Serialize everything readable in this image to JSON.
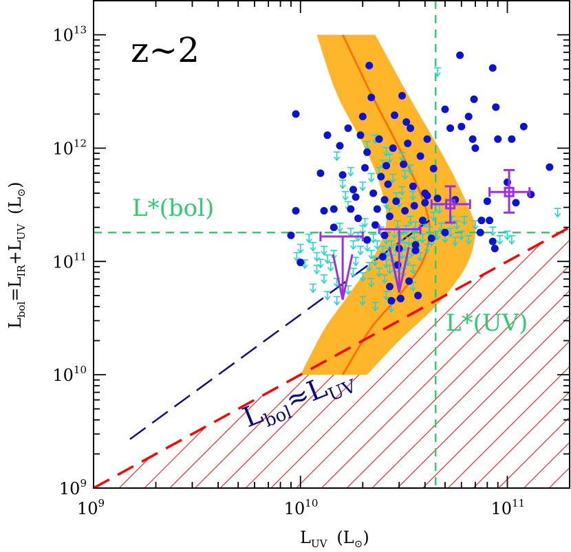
{
  "chart_data": {
    "type": "scatter",
    "redshift_label": "z~2",
    "xscale": "log",
    "yscale": "log",
    "xlim": [
      1000000000.0,
      200000000000.0
    ],
    "ylim": [
      1000000000.0,
      20000000000000.0
    ],
    "xlabel": {
      "main": "L",
      "sub": "UV",
      "unit": "(L",
      "unit_sub": "⊙",
      "unit_close": ")"
    },
    "ylabel": {
      "parts": [
        "L",
        "bol",
        "=L",
        "IR",
        "+L",
        "UV",
        "(L",
        "⊙",
        ")"
      ]
    },
    "x_ticks": [
      {
        "base": "10",
        "exp": "9",
        "value": 1000000000.0
      },
      {
        "base": "10",
        "exp": "10",
        "value": 10000000000.0
      },
      {
        "base": "10",
        "exp": "11",
        "value": 100000000000.0
      }
    ],
    "y_ticks": [
      {
        "base": "10",
        "exp": "9",
        "value": 1000000000.0
      },
      {
        "base": "10",
        "exp": "10",
        "value": 10000000000.0
      },
      {
        "base": "10",
        "exp": "11",
        "value": 100000000000.0
      },
      {
        "base": "10",
        "exp": "12",
        "value": 1000000000000.0
      },
      {
        "base": "10",
        "exp": "13",
        "value": 10000000000000.0
      }
    ],
    "reference_lines": {
      "lstar_bol": {
        "label": "L*(bol)",
        "y": 180000000000.0,
        "color": "#2ecc71"
      },
      "lstar_uv": {
        "label": "L*(UV)",
        "x": 45000000000.0,
        "color": "#2ecc71"
      }
    },
    "equality_label": {
      "main": "L",
      "sub": "bol",
      "rel": "≈L",
      "sub2": "UV",
      "color": "#0a0a7a"
    },
    "colors": {
      "band": "#ffb62a",
      "band_center": "#ff6a00",
      "detections": "#0a14d0",
      "limits": "#22d3d3",
      "stacks": "#9b30e0",
      "hatch": "#ff0000",
      "dashed_fit": "#10107a"
    },
    "band": {
      "center": [
        [
          16000000000.0,
          10000000000000.0
        ],
        [
          22000000000.0,
          3000000000000.0
        ],
        [
          30000000000.0,
          1000000000000.0
        ],
        [
          38000000000.0,
          400000000000.0
        ],
        [
          42000000000.0,
          200000000000.0
        ],
        [
          39000000000.0,
          100000000000.0
        ],
        [
          30000000000.0,
          50000000000.0
        ],
        [
          22000000000.0,
          26000000000.0
        ],
        [
          16000000000.0,
          10000000000.0
        ]
      ],
      "outer": [
        [
          23000000000.0,
          10000000000000.0
        ],
        [
          33000000000.0,
          3000000000000.0
        ],
        [
          50000000000.0,
          800000000000.0
        ],
        [
          65000000000.0,
          300000000000.0
        ],
        [
          70000000000.0,
          180000000000.0
        ],
        [
          63000000000.0,
          90000000000.0
        ],
        [
          46000000000.0,
          42000000000.0
        ],
        [
          30000000000.0,
          20000000000.0
        ],
        [
          21000000000.0,
          10000000000.0
        ]
      ],
      "inner": [
        [
          12000000000.0,
          10000000000000.0
        ],
        [
          15000000000.0,
          3000000000000.0
        ],
        [
          20000000000.0,
          1100000000000.0
        ],
        [
          24000000000.0,
          500000000000.0
        ],
        [
          26000000000.0,
          220000000000.0
        ],
        [
          22000000000.0,
          100000000000.0
        ],
        [
          17000000000.0,
          50000000000.0
        ],
        [
          13000000000.0,
          25000000000.0
        ],
        [
          10000000000.0,
          10000000000.0
        ]
      ]
    },
    "dashed_fit": {
      "from": [
        1500000000.0,
        2700000000.0
      ],
      "to": [
        42000000000.0,
        230000000000.0
      ]
    },
    "equality_line": {
      "from": [
        1000000000.0,
        1000000000.0
      ],
      "to": [
        200000000000.0,
        200000000000.0
      ]
    },
    "detections": [
      [
        9500000000.0,
        2000000000000.0
      ],
      [
        9500000000.0,
        280000000000.0
      ],
      [
        9000000000.0,
        170000000000.0
      ],
      [
        10000000000.0,
        98000000000.0
      ],
      [
        12500000000.0,
        600000000000.0
      ],
      [
        13500000000.0,
        1300000000000.0
      ],
      [
        15500000000.0,
        1050000000000.0
      ],
      [
        17000000000.0,
        1500000000000.0
      ],
      [
        13000000000.0,
        280000000000.0
      ],
      [
        14500000000.0,
        290000000000.0
      ],
      [
        14500000000.0,
        200000000000.0
      ],
      [
        16000000000.0,
        580000000000.0
      ],
      [
        18000000000.0,
        430000000000.0
      ],
      [
        17500000000.0,
        290000000000.0
      ],
      [
        18500000000.0,
        370000000000.0
      ],
      [
        19000000000.0,
        240000000000.0
      ],
      [
        19500000000.0,
        1300000000000.0
      ],
      [
        20000000000.0,
        1900000000000.0
      ],
      [
        20500000000.0,
        670000000000.0
      ],
      [
        21000000000.0,
        920000000000.0
      ],
      [
        21000000000.0,
        155000000000.0
      ],
      [
        21500000000.0,
        5350000000000.0
      ],
      [
        22000000000.0,
        2800000000000.0
      ],
      [
        22500000000.0,
        400000000000.0
      ],
      [
        23000000000.0,
        210000000000.0
      ],
      [
        23500000000.0,
        290000000000.0
      ],
      [
        24000000000.0,
        1200000000000.0
      ],
      [
        24500000000.0,
        560000000000.0
      ],
      [
        25000000000.0,
        110000000000.0
      ],
      [
        25500000000.0,
        350000000000.0
      ],
      [
        25500000000.0,
        170000000000.0
      ],
      [
        26000000000.0,
        700000000000.0
      ],
      [
        26500000000.0,
        480000000000.0
      ],
      [
        27000000000.0,
        250000000000.0
      ],
      [
        27000000000.0,
        60000000000.0
      ],
      [
        27500000000.0,
        45000000000.0
      ],
      [
        28000000000.0,
        1000000000000.0
      ],
      [
        28500000000.0,
        1950000000000.0
      ],
      [
        29000000000.0,
        340000000000.0
      ],
      [
        29500000000.0,
        93000000000.0
      ],
      [
        30000000000.0,
        130000000000.0
      ],
      [
        30500000000.0,
        47000000000.0
      ],
      [
        31000000000.0,
        2900000000000.0
      ],
      [
        31500000000.0,
        720000000000.0
      ],
      [
        32000000000.0,
        280000000000.0
      ],
      [
        32500000000.0,
        1700000000000.0
      ],
      [
        33000000000.0,
        1100000000000.0
      ],
      [
        33500000000.0,
        67000000000.0
      ],
      [
        34000000000.0,
        1500000000000.0
      ],
      [
        35000000000.0,
        460000000000.0
      ],
      [
        35500000000.0,
        310000000000.0
      ],
      [
        36000000000.0,
        140000000000.0
      ],
      [
        37000000000.0,
        50000000000.0
      ],
      [
        38000000000.0,
        850000000000.0
      ],
      [
        39000000000.0,
        230000000000.0
      ],
      [
        40000000000.0,
        400000000000.0
      ],
      [
        41000000000.0,
        1200000000000.0
      ],
      [
        43000000000.0,
        160000000000.0
      ],
      [
        44000000000.0,
        660000000000.0
      ],
      [
        46000000000.0,
        360000000000.0
      ],
      [
        50000000000.0,
        2200000000000.0
      ],
      [
        50000000000.0,
        180000000000.0
      ],
      [
        53000000000.0,
        1500000000000.0
      ],
      [
        56000000000.0,
        350000000000.0
      ],
      [
        59000000000.0,
        6600000000000.0
      ],
      [
        60000000000.0,
        1550000000000.0
      ],
      [
        65000000000.0,
        1900000000000.0
      ],
      [
        68000000000.0,
        1200000000000.0
      ],
      [
        69000000000.0,
        2700000000000.0
      ],
      [
        70000000000.0,
        1000000000000.0
      ],
      [
        74000000000.0,
        180000000000.0
      ],
      [
        75000000000.0,
        230000000000.0
      ],
      [
        80000000000.0,
        340000000000.0
      ],
      [
        82000000000.0,
        230000000000.0
      ],
      [
        85000000000.0,
        150000000000.0
      ],
      [
        87000000000.0,
        130000000000.0
      ],
      [
        85000000000.0,
        5100000000000.0
      ],
      [
        88000000000.0,
        2300000000000.0
      ],
      [
        90000000000.0,
        1200000000000.0
      ],
      [
        100000000000.0,
        500000000000.0
      ],
      [
        105000000000.0,
        1200000000000.0
      ],
      [
        110000000000.0,
        330000000000.0
      ],
      [
        120000000000.0,
        1550000000000.0
      ],
      [
        130000000000.0,
        390000000000.0
      ],
      [
        160000000000.0,
        680000000000.0
      ],
      [
        40000000000.0,
        330000000000.0
      ],
      [
        41000000000.0,
        380000000000.0
      ],
      [
        36000000000.0,
        125000000000.0
      ]
    ],
    "upper_limits": [
      [
        15000000000.0,
        850000000000.0
      ],
      [
        15500000000.0,
        200000000000.0
      ],
      [
        11000000000.0,
        160000000000.0
      ],
      [
        11500000000.0,
        135000000000.0
      ],
      [
        12000000000.0,
        110000000000.0
      ],
      [
        12500000000.0,
        96000000000.0
      ],
      [
        13000000000.0,
        125000000000.0
      ],
      [
        13500000000.0,
        105000000000.0
      ],
      [
        14000000000.0,
        90000000000.0
      ],
      [
        14500000000.0,
        115000000000.0
      ],
      [
        12000000000.0,
        85000000000.0
      ],
      [
        9600000000.0,
        110000000000.0
      ],
      [
        10000000000.0,
        130000000000.0
      ],
      [
        10500000000.0,
        95000000000.0
      ],
      [
        16000000000.0,
        480000000000.0
      ],
      [
        16500000000.0,
        380000000000.0
      ],
      [
        17000000000.0,
        310000000000.0
      ],
      [
        17500000000.0,
        180000000000.0
      ],
      [
        18000000000.0,
        140000000000.0
      ],
      [
        18000000000.0,
        80000000000.0
      ],
      [
        18500000000.0,
        100000000000.0
      ],
      [
        19000000000.0,
        165000000000.0
      ],
      [
        19500000000.0,
        125000000000.0
      ],
      [
        20000000000.0,
        73000000000.0
      ],
      [
        20000000000.0,
        190000000000.0
      ],
      [
        20500000000.0,
        220000000000.0
      ],
      [
        21000000000.0,
        135000000000.0
      ],
      [
        21500000000.0,
        90000000000.0
      ],
      [
        22000000000.0,
        65000000000.0
      ],
      [
        22000000000.0,
        115000000000.0
      ],
      [
        22500000000.0,
        160000000000.0
      ],
      [
        23000000000.0,
        100000000000.0
      ],
      [
        23500000000.0,
        140000000000.0
      ],
      [
        24000000000.0,
        80000000000.0
      ],
      [
        24500000000.0,
        185000000000.0
      ],
      [
        25000000000.0,
        125000000000.0
      ],
      [
        25500000000.0,
        70000000000.0
      ],
      [
        26000000000.0,
        95000000000.0
      ],
      [
        26000000000.0,
        155000000000.0
      ],
      [
        26500000000.0,
        120000000000.0
      ],
      [
        27000000000.0,
        85000000000.0
      ],
      [
        27500000000.0,
        140000000000.0
      ],
      [
        28000000000.0,
        105000000000.0
      ],
      [
        28500000000.0,
        175000000000.0
      ],
      [
        29000000000.0,
        75000000000.0
      ],
      [
        29000000000.0,
        130000000000.0
      ],
      [
        29500000000.0,
        210000000000.0
      ],
      [
        30000000000.0,
        90000000000.0
      ],
      [
        30500000000.0,
        160000000000.0
      ],
      [
        31000000000.0,
        115000000000.0
      ],
      [
        31500000000.0,
        80000000000.0
      ],
      [
        32000000000.0,
        135000000000.0
      ],
      [
        32500000000.0,
        190000000000.0
      ],
      [
        33000000000.0,
        100000000000.0
      ],
      [
        33500000000.0,
        150000000000.0
      ],
      [
        34000000000.0,
        230000000000.0
      ],
      [
        34500000000.0,
        120000000000.0
      ],
      [
        35000000000.0,
        85000000000.0
      ],
      [
        35500000000.0,
        170000000000.0
      ],
      [
        36000000000.0,
        205000000000.0
      ],
      [
        37000000000.0,
        140000000000.0
      ],
      [
        38000000000.0,
        110000000000.0
      ],
      [
        39000000000.0,
        160000000000.0
      ],
      [
        40000000000.0,
        220000000000.0
      ],
      [
        41000000000.0,
        130000000000.0
      ],
      [
        42000000000.0,
        185000000000.0
      ],
      [
        43000000000.0,
        150000000000.0
      ],
      [
        44000000000.0,
        250000000000.0
      ],
      [
        46000000000.0,
        170000000000.0
      ],
      [
        48000000000.0,
        200000000000.0
      ],
      [
        50000000000.0,
        160000000000.0
      ],
      [
        53000000000.0,
        180000000000.0
      ],
      [
        56000000000.0,
        150000000000.0
      ],
      [
        60000000000.0,
        170000000000.0
      ],
      [
        65000000000.0,
        155000000000.0
      ],
      [
        70000000000.0,
        210000000000.0
      ],
      [
        20000000000.0,
        460000000000.0
      ],
      [
        22000000000.0,
        550000000000.0
      ],
      [
        24000000000.0,
        620000000000.0
      ],
      [
        25000000000.0,
        720000000000.0
      ],
      [
        26000000000.0,
        320000000000.0
      ],
      [
        27000000000.0,
        270000000000.0
      ],
      [
        28000000000.0,
        540000000000.0
      ],
      [
        29000000000.0,
        370000000000.0
      ],
      [
        30000000000.0,
        330000000000.0
      ],
      [
        31000000000.0,
        420000000000.0
      ],
      [
        32000000000.0,
        580000000000.0
      ],
      [
        34000000000.0,
        650000000000.0
      ],
      [
        35000000000.0,
        380000000000.0
      ],
      [
        27000000000.0,
        810000000000.0
      ],
      [
        26000000000.0,
        930000000000.0
      ],
      [
        21000000000.0,
        1050000000000.0
      ],
      [
        23000000000.0,
        1200000000000.0
      ],
      [
        31000000000.0,
        840000000000.0
      ],
      [
        17500000000.0,
        620000000000.0
      ],
      [
        46000000000.0,
        4700000000000.0
      ],
      [
        47000000000.0,
        290000000000.0
      ],
      [
        54000000000.0,
        230000000000.0
      ],
      [
        57000000000.0,
        210000000000.0
      ],
      [
        62000000000.0,
        230000000000.0
      ],
      [
        85000000000.0,
        185000000000.0
      ],
      [
        92000000000.0,
        155000000000.0
      ],
      [
        100000000000.0,
        170000000000.0
      ],
      [
        105000000000.0,
        155000000000.0
      ],
      [
        175000000000.0,
        270000000000.0
      ],
      [
        13500000000.0,
        50000000000.0
      ],
      [
        15000000000.0,
        45000000000.0
      ],
      [
        13000000000.0,
        70000000000.0
      ],
      [
        11500000000.0,
        58000000000.0
      ],
      [
        20000000000.0,
        45000000000.0
      ],
      [
        23000000000.0,
        40000000000.0
      ],
      [
        26000000000.0,
        50000000000.0
      ],
      [
        27500000000.0,
        39000000000.0
      ],
      [
        35000000000.0,
        60000000000.0
      ],
      [
        15000000000.0,
        65000000000.0
      ],
      [
        17000000000.0,
        56000000000.0
      ]
    ],
    "stacks": [
      {
        "x": 16000000000.0,
        "y": 95000000000.0,
        "xerr": [
          12500000000.0,
          20000000000.0
        ],
        "limit": true
      },
      {
        "x": 30000000000.0,
        "y": 110000000000.0,
        "xerr": [
          24000000000.0,
          38000000000.0
        ],
        "limit": true
      },
      {
        "x": 53000000000.0,
        "y": 320000000000.0,
        "xerr": [
          43000000000.0,
          66000000000.0
        ],
        "yerr": [
          220000000000.0,
          460000000000.0
        ],
        "limit": false
      },
      {
        "x": 102000000000.0,
        "y": 410000000000.0,
        "xerr": [
          82000000000.0,
          128000000000.0
        ],
        "yerr": [
          270000000000.0,
          640000000000.0
        ],
        "limit": false
      }
    ]
  }
}
